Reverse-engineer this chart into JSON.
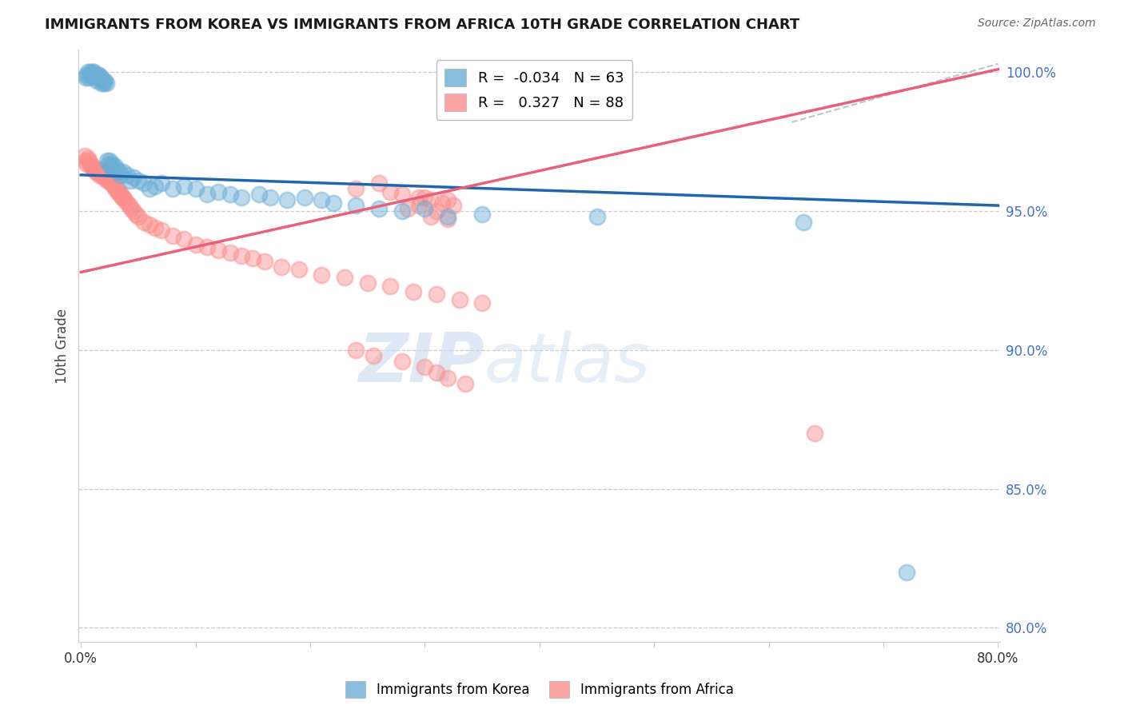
{
  "title": "IMMIGRANTS FROM KOREA VS IMMIGRANTS FROM AFRICA 10TH GRADE CORRELATION CHART",
  "source_text": "Source: ZipAtlas.com",
  "ylabel": "10th Grade",
  "x_min": 0.0,
  "x_max": 0.8,
  "y_min": 0.795,
  "y_max": 1.008,
  "y_ticks": [
    0.8,
    0.85,
    0.9,
    0.95,
    1.0
  ],
  "y_tick_labels": [
    "80.0%",
    "85.0%",
    "90.0%",
    "95.0%",
    "100.0%"
  ],
  "x_ticks": [
    0.0,
    0.1,
    0.2,
    0.3,
    0.4,
    0.5,
    0.6,
    0.7,
    0.8
  ],
  "x_tick_labels": [
    "0.0%",
    "",
    "",
    "",
    "",
    "",
    "",
    "",
    "80.0%"
  ],
  "korea_color": "#6baed6",
  "africa_color": "#fc8d8d",
  "korea_R": -0.034,
  "korea_N": 63,
  "africa_R": 0.327,
  "africa_N": 88,
  "legend_label_korea": "Immigrants from Korea",
  "legend_label_africa": "Immigrants from Africa",
  "watermark_zip": "ZIP",
  "watermark_atlas": "atlas",
  "korea_trend_x": [
    0.0,
    0.8
  ],
  "korea_trend_y": [
    0.963,
    0.952
  ],
  "africa_trend_x": [
    0.0,
    0.8
  ],
  "africa_trend_y": [
    0.928,
    1.001
  ],
  "dash_line_x": [
    0.62,
    0.8
  ],
  "dash_line_y": [
    0.982,
    1.003
  ],
  "korea_scatter_x": [
    0.004,
    0.005,
    0.006,
    0.007,
    0.008,
    0.008,
    0.009,
    0.01,
    0.01,
    0.011,
    0.012,
    0.013,
    0.014,
    0.015,
    0.015,
    0.016,
    0.017,
    0.018,
    0.019,
    0.02,
    0.021,
    0.022,
    0.023,
    0.024,
    0.025,
    0.026,
    0.027,
    0.028,
    0.03,
    0.031,
    0.033,
    0.035,
    0.037,
    0.04,
    0.043,
    0.046,
    0.05,
    0.055,
    0.06,
    0.065,
    0.07,
    0.08,
    0.09,
    0.1,
    0.11,
    0.12,
    0.13,
    0.14,
    0.155,
    0.165,
    0.18,
    0.195,
    0.21,
    0.22,
    0.24,
    0.26,
    0.28,
    0.3,
    0.32,
    0.35,
    0.45,
    0.63,
    0.72
  ],
  "korea_scatter_y": [
    0.998,
    0.999,
    1.0,
    0.998,
    0.999,
    1.0,
    0.999,
    1.0,
    0.999,
    1.0,
    0.999,
    0.998,
    0.997,
    0.999,
    0.998,
    0.999,
    0.998,
    0.996,
    0.997,
    0.996,
    0.997,
    0.996,
    0.968,
    0.967,
    0.968,
    0.966,
    0.967,
    0.965,
    0.966,
    0.965,
    0.964,
    0.963,
    0.964,
    0.963,
    0.961,
    0.962,
    0.961,
    0.96,
    0.958,
    0.959,
    0.96,
    0.958,
    0.959,
    0.958,
    0.956,
    0.957,
    0.956,
    0.955,
    0.956,
    0.955,
    0.954,
    0.955,
    0.954,
    0.953,
    0.952,
    0.951,
    0.95,
    0.951,
    0.948,
    0.949,
    0.948,
    0.946,
    0.82
  ],
  "africa_scatter_x": [
    0.003,
    0.004,
    0.005,
    0.006,
    0.007,
    0.008,
    0.009,
    0.01,
    0.011,
    0.012,
    0.013,
    0.014,
    0.015,
    0.016,
    0.017,
    0.018,
    0.019,
    0.02,
    0.021,
    0.022,
    0.023,
    0.024,
    0.025,
    0.026,
    0.027,
    0.028,
    0.029,
    0.03,
    0.031,
    0.032,
    0.033,
    0.034,
    0.035,
    0.036,
    0.037,
    0.038,
    0.04,
    0.042,
    0.044,
    0.046,
    0.048,
    0.05,
    0.055,
    0.06,
    0.065,
    0.07,
    0.08,
    0.09,
    0.1,
    0.11,
    0.12,
    0.13,
    0.14,
    0.15,
    0.16,
    0.175,
    0.19,
    0.21,
    0.23,
    0.25,
    0.27,
    0.29,
    0.31,
    0.33,
    0.35,
    0.3,
    0.32,
    0.295,
    0.285,
    0.31,
    0.305,
    0.32,
    0.26,
    0.24,
    0.27,
    0.28,
    0.295,
    0.305,
    0.315,
    0.325,
    0.64,
    0.24,
    0.255,
    0.28,
    0.3,
    0.31,
    0.32,
    0.335
  ],
  "africa_scatter_y": [
    0.97,
    0.968,
    0.967,
    0.969,
    0.968,
    0.967,
    0.966,
    0.966,
    0.965,
    0.965,
    0.964,
    0.965,
    0.964,
    0.963,
    0.964,
    0.963,
    0.964,
    0.962,
    0.963,
    0.962,
    0.961,
    0.962,
    0.961,
    0.96,
    0.961,
    0.96,
    0.959,
    0.958,
    0.958,
    0.957,
    0.957,
    0.956,
    0.956,
    0.955,
    0.955,
    0.954,
    0.953,
    0.952,
    0.951,
    0.95,
    0.949,
    0.948,
    0.946,
    0.945,
    0.944,
    0.943,
    0.941,
    0.94,
    0.938,
    0.937,
    0.936,
    0.935,
    0.934,
    0.933,
    0.932,
    0.93,
    0.929,
    0.927,
    0.926,
    0.924,
    0.923,
    0.921,
    0.92,
    0.918,
    0.917,
    0.955,
    0.954,
    0.952,
    0.951,
    0.95,
    0.948,
    0.947,
    0.96,
    0.958,
    0.957,
    0.956,
    0.955,
    0.954,
    0.953,
    0.952,
    0.87,
    0.9,
    0.898,
    0.896,
    0.894,
    0.892,
    0.89,
    0.888
  ]
}
